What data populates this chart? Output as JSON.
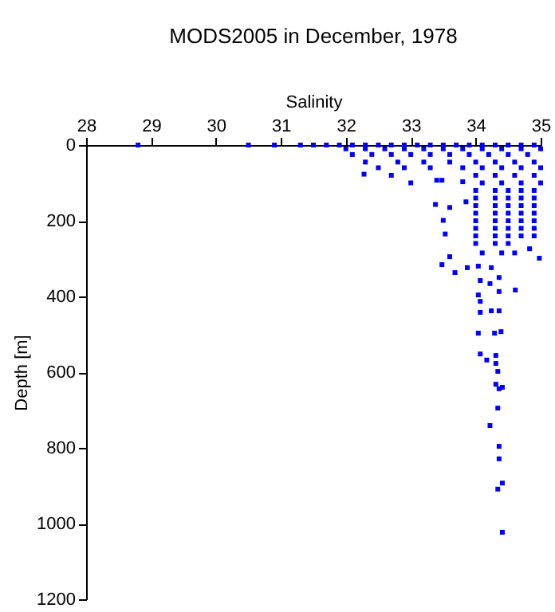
{
  "chart_data": {
    "type": "scatter",
    "title": "MODS2005 in December, 1978",
    "xlabel": "Salinity",
    "ylabel": "Depth [m]",
    "xlim": [
      28,
      35
    ],
    "xticks": [
      28,
      29,
      30,
      31,
      32,
      33,
      34,
      35
    ],
    "ylim": [
      1200,
      0
    ],
    "yticks": [
      0,
      200,
      400,
      600,
      800,
      1000,
      1200
    ],
    "grid": false,
    "marker": "square",
    "series": [
      {
        "color": "#0000ff",
        "x": [
          28.8,
          30.5,
          30.9,
          31.3,
          31.5,
          31.7,
          31.9,
          32.1,
          32.3,
          32.5,
          32.7,
          32.9,
          33.1,
          33.3,
          33.5,
          33.7,
          33.9,
          34.1,
          34.3,
          34.5,
          34.7,
          34.9,
          32.0,
          32.3,
          32.6,
          32.9,
          33.2,
          33.5,
          33.8,
          34.1,
          34.4,
          34.7,
          35.0,
          32.1,
          32.4,
          32.7,
          33.0,
          33.3,
          33.6,
          33.9,
          34.2,
          34.5,
          34.8,
          32.3,
          32.8,
          33.2,
          33.6,
          34.0,
          34.3,
          34.6,
          34.9,
          32.5,
          32.9,
          33.3,
          33.8,
          34.1,
          34.4,
          34.7,
          35.0,
          32.28,
          32.7,
          33.4,
          34.0,
          34.3,
          34.6,
          34.9,
          33.0,
          33.48,
          33.8,
          34.1,
          34.4,
          34.7,
          35.0,
          34.0,
          34.3,
          34.5,
          34.7,
          34.9,
          34.0,
          34.3,
          34.5,
          34.7,
          34.9,
          33.38,
          33.85,
          34.0,
          34.3,
          34.5,
          34.7,
          34.9,
          33.6,
          34.0,
          34.3,
          34.5,
          34.7,
          34.9,
          33.5,
          34.0,
          34.3,
          34.5,
          34.7,
          34.9,
          34.0,
          34.3,
          34.5,
          34.7,
          34.9,
          33.53,
          34.0,
          34.3,
          34.5,
          34.7,
          34.9,
          34.0,
          34.3,
          34.5,
          34.83,
          34.1,
          34.4,
          34.6,
          34.98,
          33.6,
          33.48,
          33.68,
          33.87,
          34.04,
          34.24,
          34.07,
          34.36,
          34.22,
          34.61,
          34.04,
          34.36,
          34.07,
          34.24,
          34.36,
          34.07,
          34.04,
          34.29,
          34.39,
          34.07,
          34.17,
          34.31,
          34.31,
          34.34,
          34.31,
          34.36,
          34.41,
          34.34,
          34.22,
          34.36,
          34.36,
          34.41,
          34.34,
          34.41
        ],
        "values": [
          0,
          0,
          0,
          0,
          0,
          0,
          0,
          0,
          0,
          0,
          0,
          0,
          0,
          0,
          0,
          0,
          0,
          0,
          0,
          0,
          0,
          0,
          10,
          10,
          10,
          10,
          10,
          10,
          10,
          10,
          10,
          10,
          10,
          25,
          25,
          25,
          25,
          25,
          25,
          25,
          25,
          25,
          25,
          45,
          45,
          45,
          45,
          45,
          45,
          45,
          45,
          60,
          60,
          60,
          60,
          60,
          60,
          60,
          60,
          77,
          80,
          93,
          80,
          80,
          80,
          80,
          100,
          93,
          97,
          100,
          100,
          100,
          100,
          120,
          120,
          120,
          120,
          120,
          140,
          140,
          140,
          140,
          140,
          157,
          150,
          160,
          160,
          160,
          160,
          160,
          165,
          180,
          180,
          180,
          180,
          180,
          199,
          200,
          200,
          200,
          200,
          200,
          220,
          220,
          220,
          220,
          220,
          235,
          240,
          240,
          240,
          240,
          240,
          260,
          260,
          260,
          274,
          285,
          285,
          285,
          299,
          295,
          316,
          337,
          324,
          320,
          324,
          358,
          350,
          366,
          383,
          396,
          387,
          413,
          438,
          438,
          442,
          497,
          497,
          493,
          552,
          568,
          556,
          577,
          598,
          632,
          644,
          640,
          695,
          741,
          796,
          829,
          893,
          909,
          1023
        ]
      }
    ]
  }
}
